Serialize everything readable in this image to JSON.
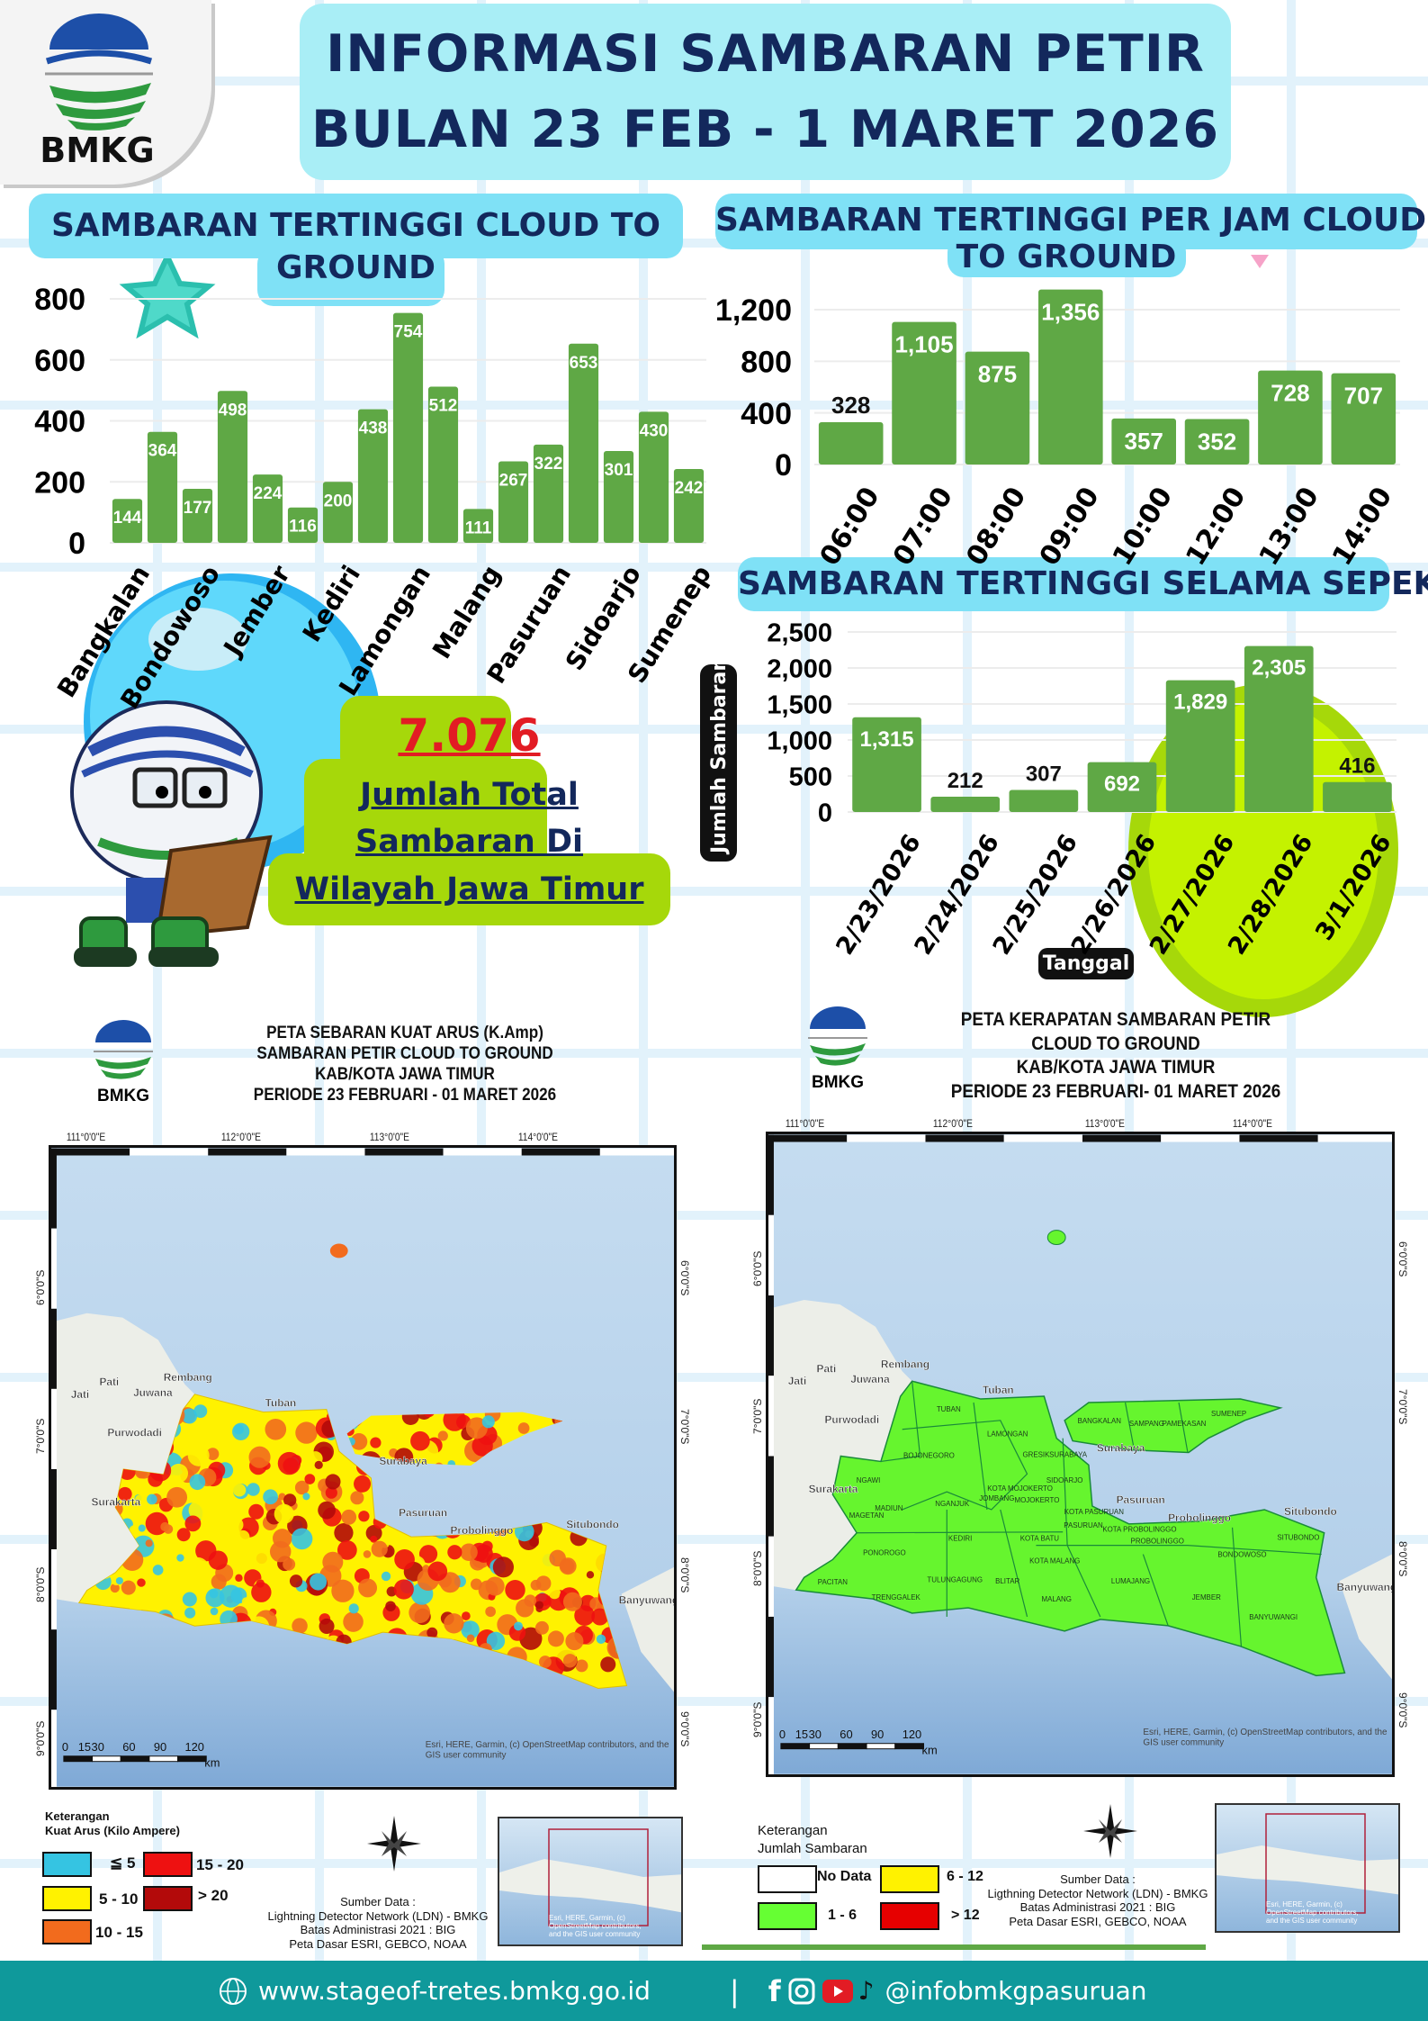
{
  "header": {
    "logo_text": "BMKG",
    "title_line1": "INFORMASI SAMBARAN PETIR",
    "title_line2": "BULAN 23 FEB - 1 MARET 2026"
  },
  "colors": {
    "bar": "#5fa845",
    "title_navy": "#13285c",
    "header_cyan": "#7fe1f6",
    "total_lime": "#a6d80a",
    "total_red": "#e21c24",
    "footer_teal": "#0f999b"
  },
  "chart_data": [
    {
      "type": "bar",
      "title_lines": [
        "SAMBARAN TERTINGGI  CLOUD TO",
        "GROUND"
      ],
      "categories": [
        "Bangkalan",
        "",
        "Bondowoso",
        "",
        "Jember",
        "",
        "Kediri",
        "",
        "Lamongan",
        "",
        "Malang",
        "",
        "Pasuruan",
        "",
        "Sidoarjo",
        "",
        "Sumenep"
      ],
      "values": [
        144,
        364,
        177,
        498,
        224,
        116,
        200,
        438,
        754,
        512,
        111,
        267,
        322,
        653,
        301,
        430,
        242
      ],
      "ylim": [
        0,
        800
      ],
      "yticks": [
        "0",
        "200",
        "400",
        "600",
        "800"
      ],
      "xlabel": "",
      "ylabel": "",
      "grid": true
    },
    {
      "type": "bar",
      "title_lines": [
        "SAMBARAN TERTINGGI PER JAM CLOUD",
        "TO GROUND"
      ],
      "categories": [
        "06:00",
        "07:00",
        "08:00",
        "09:00",
        "10:00",
        "12:00",
        "13:00",
        "14:00"
      ],
      "values": [
        328,
        1105,
        875,
        1356,
        357,
        352,
        728,
        707
      ],
      "value_labels": [
        "328",
        "1,105",
        "875",
        "1,356",
        "357",
        "352",
        "728",
        "707"
      ],
      "ylim": [
        0,
        1356
      ],
      "yticks": [
        "0",
        "400",
        "800",
        "1,200"
      ],
      "ytick_values": [
        0,
        400,
        800,
        1200
      ],
      "xlabel": "",
      "ylabel": "",
      "grid": true
    },
    {
      "type": "bar",
      "title_lines": [
        "SAMBARAN TERTINGGI SELAMA SEPEKAN"
      ],
      "categories": [
        "2/23/2026",
        "2/24/2026",
        "2/25/2026",
        "2/26/2026",
        "2/27/2026",
        "2/28/2026",
        "3/1/2026"
      ],
      "values": [
        1315,
        212,
        307,
        692,
        1829,
        2305,
        416
      ],
      "value_labels": [
        "1,315",
        "212",
        "307",
        "692",
        "1,829",
        "2,305",
        "416"
      ],
      "ylim": [
        0,
        2500
      ],
      "yticks": [
        "0",
        "500",
        "1,000",
        "1,500",
        "2,000",
        "2,500"
      ],
      "ytick_values": [
        0,
        500,
        1000,
        1500,
        2000,
        2500
      ],
      "xlabel": "Tanggal",
      "ylabel": "Jumlah Sambaran",
      "grid": true
    }
  ],
  "total": {
    "value": "7.076",
    "line1": "Jumlah Total",
    "line2": "Sambaran Di",
    "line3": "Wilayah Jawa Timur"
  },
  "maps": [
    {
      "logo_text": "BMKG",
      "title_lines": [
        "PETA SEBARAN KUAT ARUS (K.Amp)",
        "SAMBARAN PETIR CLOUD TO GROUND",
        "KAB/KOTA JAWA TIMUR",
        "PERIODE 23 FEBRUARI - 01 MARET 2026"
      ],
      "lon_labels": [
        "111°0'0\"E",
        "112°0'0\"E",
        "113°0'0\"E",
        "114°0'0\"E"
      ],
      "lat_labels": [
        "6°0'0\"S",
        "7°0'0\"S",
        "8°0'0\"S",
        "9°0'0\"S"
      ],
      "scale_labels": [
        "0",
        "15",
        "30",
        "60",
        "90",
        "120",
        "km"
      ],
      "attribution": "Esri, HERE, Garmin, (c) OpenStreetMap contributors, and the GIS user community",
      "legend_title": "Keterangan",
      "legend_subtitle": "Kuat Arus (Kilo Ampere)",
      "legend": [
        {
          "label": "≦ 5",
          "color": "#35c4e2"
        },
        {
          "label": "5 - 10",
          "color": "#fff200"
        },
        {
          "label": "10 - 15",
          "color": "#f26b1d"
        },
        {
          "label": "15 - 20",
          "color": "#ee1111"
        },
        {
          "label": "> 20",
          "color": "#b30a0a"
        }
      ],
      "source": [
        "Sumber Data :",
        "Lightning Detector Network (LDN) - BMKG",
        "Batas Administrasi 2021  : BIG",
        "Peta Dasar ESRI, GEBCO, NOAA"
      ],
      "inset_attribution": "Esri, HERE, Garmin, (c) OpenStreetMap contributors, and the GIS user community"
    },
    {
      "logo_text": "BMKG",
      "title_lines": [
        "PETA KERAPATAN SAMBARAN PETIR",
        "CLOUD TO GROUND",
        "KAB/KOTA JAWA TIMUR",
        "PERIODE  23  FEBRUARI- 01 MARET  2026"
      ],
      "lon_labels": [
        "111°0'0\"E",
        "112°0'0\"E",
        "113°0'0\"E",
        "114°0'0\"E"
      ],
      "lat_labels": [
        "6°0'0\"S",
        "7°0'0\"S",
        "8°0'0\"S",
        "9°0'0\"S"
      ],
      "scale_labels": [
        "0",
        "15",
        "30",
        "60",
        "90",
        "120",
        "km"
      ],
      "attribution": "Esri, HERE, Garmin, (c) OpenStreetMap contributors, and the GIS user community",
      "legend_title": "Keterangan",
      "legend_subtitle": "Jumlah Sambaran",
      "legend": [
        {
          "label": "No Data",
          "color": "#ffffff"
        },
        {
          "label": "1 - 6",
          "color": "#66ff33"
        },
        {
          "label": "6 - 12",
          "color": "#fff200"
        },
        {
          "label": "> 12",
          "color": "#e60000"
        }
      ],
      "source": [
        "Sumber Data :",
        "Ligthning Detector Network (LDN) - BMKG",
        "Batas Administrasi 2021  : BIG",
        "Peta Dasar ESRI, GEBCO, NOAA"
      ],
      "inset_attribution": "Esri, HERE, Garmin, (c) OpenStreetMap contributors, and the GIS user community",
      "regencies": [
        "TUBAN",
        "LAMONGAN",
        "BOJONEGORO",
        "GRESIK",
        "SURABAYA",
        "NGAWI",
        "SIDOARJO",
        "KOTA MOJOKERTO",
        "JOMBANG",
        "MOJOKERTO",
        "NGANJUK",
        "MADIUN",
        "MAGETAN",
        "KOTA PASURUAN",
        "PASURUAN",
        "KOTA PROBOLINGGO",
        "PROBOLINGGO",
        "KEDIRI",
        "KOTA BATU",
        "SITUBONDO",
        "PONOROGO",
        "BONDOWOSO",
        "KOTA MALANG",
        "BLITAR",
        "TULUNGAGUNG",
        "PACITAN",
        "LUMAJANG",
        "TRENGGALEK",
        "MALANG",
        "JEMBER",
        "BANYUWANGI",
        "BANGKALAN",
        "SAMPANG",
        "PAMEKASAN",
        "SUMENEP"
      ]
    }
  ],
  "basemap_places": [
    "Rembang",
    "Pati",
    "Juwana",
    "Jati",
    "Purwodadi",
    "Surakarta",
    "Tuban",
    "Surabaya",
    "Pasuruan",
    "Probolinggo",
    "Situbondo",
    "Banyuwangi"
  ],
  "footer": {
    "website": "www.stageof-tretes.bmkg.go.id",
    "separator": "|",
    "handle": "@infobmkgpasuruan",
    "icons": [
      "globe-icon",
      "facebook-icon",
      "instagram-icon",
      "youtube-icon",
      "tiktok-icon"
    ]
  }
}
